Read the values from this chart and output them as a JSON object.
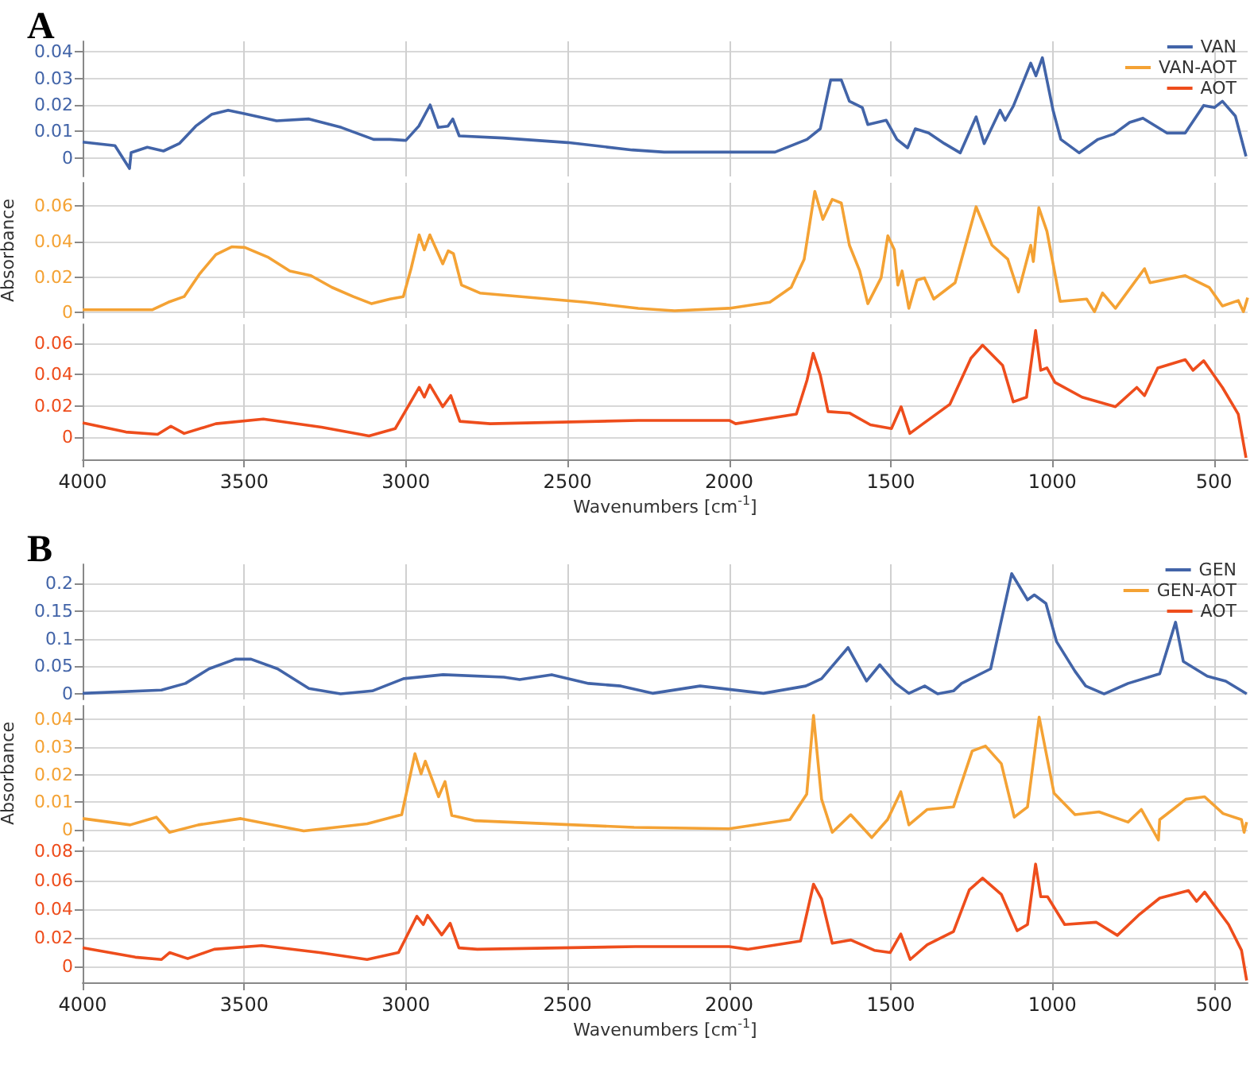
{
  "chart_data": [
    {
      "type": "line",
      "title": "A",
      "xlim": [
        4000,
        396
      ],
      "xticks": [
        4000,
        3500,
        3000,
        2500,
        2000,
        1500,
        1000,
        500
      ],
      "ylim": [
        -0.007,
        0.044
      ],
      "yticks": [
        0,
        0.01,
        0.02,
        0.03,
        0.04
      ],
      "tick_labels": "y",
      "grid": true,
      "legend": "top right",
      "marker": "none",
      "series": [
        {
          "name": "VAN",
          "color": "#4264a8",
          "x": [
            4000,
            3900,
            3855,
            3850,
            3800,
            3750,
            3700,
            3650,
            3600,
            3550,
            3500,
            3400,
            3300,
            3200,
            3100,
            3050,
            3000,
            2960,
            2925,
            2900,
            2870,
            2855,
            2835,
            2700,
            2500,
            2300,
            2201,
            2000,
            1858,
            1759,
            1718,
            1686,
            1653,
            1628,
            1588,
            1571,
            1514,
            1481,
            1448,
            1424,
            1383,
            1334,
            1285,
            1236,
            1211,
            1162,
            1146,
            1121,
            1088,
            1067,
            1051,
            1031,
            998,
            974,
            917,
            859,
            810,
            761,
            720,
            646,
            589,
            532,
            499,
            474,
            434,
            401
          ],
          "values": [
            0.006,
            0.0046,
            -0.004,
            0.002,
            0.004,
            0.0026,
            0.0055,
            0.012,
            0.0165,
            0.018,
            0.0167,
            0.014,
            0.0147,
            0.0115,
            0.007,
            0.007,
            0.0066,
            0.012,
            0.02,
            0.0115,
            0.012,
            0.0147,
            0.0083,
            0.0075,
            0.0058,
            0.003,
            0.0022,
            0.0022,
            0.0022,
            0.007,
            0.011,
            0.0294,
            0.0294,
            0.0214,
            0.019,
            0.0126,
            0.0142,
            0.007,
            0.0038,
            0.011,
            0.0094,
            0.0054,
            0.0019,
            0.0155,
            0.0054,
            0.018,
            0.0142,
            0.0195,
            0.0294,
            0.0358,
            0.031,
            0.0378,
            0.018,
            0.007,
            0.0019,
            0.007,
            0.009,
            0.0134,
            0.015,
            0.0094,
            0.0094,
            0.0198,
            0.019,
            0.0214,
            0.0158,
            0.0006
          ]
        }
      ]
    },
    {
      "type": "line",
      "ylabel": "Absorbance",
      "xlim": [
        4000,
        396
      ],
      "xticks": [
        4000,
        3500,
        3000,
        2500,
        2000,
        1500,
        1000,
        500
      ],
      "ylim": [
        -0.003,
        0.073
      ],
      "yticks": [
        0,
        0.02,
        0.04,
        0.06
      ],
      "tick_labels": "y",
      "grid": true,
      "legend": "top right",
      "marker": "none",
      "series": [
        {
          "name": "VAN-AOT",
          "color": "#f4a234",
          "x": [
            4000,
            3784,
            3735,
            3686,
            3637,
            3588,
            3539,
            3498,
            3425,
            3359,
            3294,
            3229,
            3163,
            3106,
            3049,
            3008,
            2984,
            2959,
            2943,
            2926,
            2886,
            2869,
            2853,
            2828,
            2771,
            2608,
            2444,
            2281,
            2169,
            2000,
            1874,
            1808,
            1768,
            1735,
            1710,
            1681,
            1653,
            1628,
            1596,
            1571,
            1530,
            1509,
            1489,
            1478,
            1465,
            1444,
            1419,
            1396,
            1367,
            1301,
            1236,
            1187,
            1138,
            1105,
            1067,
            1059,
            1042,
            1017,
            976,
            894,
            870,
            845,
            805,
            715,
            698,
            589,
            515,
            474,
            425,
            409,
            396
          ],
          "values": [
            0.0016,
            0.0016,
            0.0058,
            0.009,
            0.022,
            0.0326,
            0.037,
            0.0366,
            0.031,
            0.0234,
            0.0208,
            0.0142,
            0.009,
            0.005,
            0.0076,
            0.009,
            0.0247,
            0.0437,
            0.0353,
            0.0437,
            0.0274,
            0.0347,
            0.0332,
            0.0155,
            0.011,
            0.0084,
            0.0058,
            0.0024,
            0.001,
            0.0024,
            0.0058,
            0.0142,
            0.03,
            0.0682,
            0.0524,
            0.0637,
            0.0616,
            0.0379,
            0.0234,
            0.005,
            0.0195,
            0.0432,
            0.0353,
            0.0155,
            0.0234,
            0.0024,
            0.0182,
            0.0195,
            0.0076,
            0.0168,
            0.0595,
            0.0379,
            0.03,
            0.0116,
            0.0379,
            0.0287,
            0.059,
            0.0458,
            0.0063,
            0.0076,
            0.0005,
            0.011,
            0.0024,
            0.0247,
            0.0168,
            0.0208,
            0.0142,
            0.0037,
            0.0068,
            0.0005,
            0.0084
          ]
        }
      ]
    },
    {
      "type": "line",
      "xlabel": "Wavenumbers [cm$^{-1}$]",
      "xlim": [
        4000,
        396
      ],
      "xticks": [
        4000,
        3500,
        3000,
        2500,
        2000,
        1500,
        1000,
        500
      ],
      "ylim": [
        -0.014,
        0.072
      ],
      "yticks": [
        0,
        0.02,
        0.04,
        0.06
      ],
      "grid": true,
      "legend": "top right",
      "marker": "none",
      "series": [
        {
          "name": "AOT",
          "color": "#ee4d1c",
          "x": [
            4000,
            3866,
            3768,
            3727,
            3686,
            3588,
            3441,
            3261,
            3114,
            3033,
            2959,
            2943,
            2926,
            2886,
            2861,
            2833,
            2739,
            2281,
            2000,
            1980,
            1792,
            1759,
            1740,
            1718,
            1694,
            1628,
            1563,
            1498,
            1468,
            1441,
            1400,
            1317,
            1252,
            1216,
            1154,
            1121,
            1080,
            1052,
            1036,
            1017,
            992,
            908,
            805,
            739,
            715,
            674,
            589,
            565,
            532,
            474,
            425,
            401
          ],
          "values": [
            0.0093,
            0.0034,
            0.0019,
            0.0071,
            0.0025,
            0.0087,
            0.0117,
            0.0065,
            0.0009,
            0.0056,
            0.0318,
            0.0256,
            0.0334,
            0.0195,
            0.0266,
            0.0102,
            0.0087,
            0.0108,
            0.0108,
            0.0087,
            0.0148,
            0.0365,
            0.0535,
            0.0396,
            0.0164,
            0.0155,
            0.008,
            0.0056,
            0.0195,
            0.0025,
            0.0087,
            0.0211,
            0.0504,
            0.0587,
            0.0458,
            0.0226,
            0.0256,
            0.068,
            0.0427,
            0.0442,
            0.035,
            0.0256,
            0.0195,
            0.0318,
            0.0266,
            0.0442,
            0.0495,
            0.0427,
            0.0488,
            0.0318,
            0.0148,
            -0.013
          ]
        }
      ]
    },
    {
      "type": "line",
      "title": "B",
      "xlim": [
        4000,
        396
      ],
      "xticks": [
        4000,
        3500,
        3000,
        2500,
        2000,
        1500,
        1000,
        500
      ],
      "ylim": [
        -0.01,
        0.235
      ],
      "yticks": [
        0,
        0.05,
        0.1,
        0.15,
        0.2
      ],
      "tick_labels": "y",
      "grid": true,
      "legend": "top right",
      "marker": "none",
      "series": [
        {
          "name": "GEN",
          "color": "#4264a8",
          "x": [
            4000,
            3756,
            3682,
            3609,
            3528,
            3479,
            3397,
            3300,
            3202,
            3104,
            3007,
            2885,
            2697,
            2648,
            2549,
            2435,
            2335,
            2237,
            2090,
            1894,
            1763,
            1714,
            1632,
            1575,
            1534,
            1485,
            1444,
            1395,
            1355,
            1306,
            1281,
            1191,
            1126,
            1077,
            1056,
            1020,
            987,
            930,
            897,
            840,
            766,
            668,
            619,
            595,
            521,
            464,
            399
          ],
          "values": [
            0.001,
            0.007,
            0.019,
            0.0455,
            0.063,
            0.063,
            0.0455,
            0.0098,
            0,
            0.0054,
            0.0277,
            0.0348,
            0.0304,
            0.0259,
            0.0348,
            0.019,
            0.0143,
            0.001,
            0.0143,
            0.001,
            0.0143,
            0.0277,
            0.084,
            0.0232,
            0.0527,
            0.019,
            0.001,
            0.0143,
            0,
            0.0054,
            0.019,
            0.0455,
            0.218,
            0.1705,
            0.1795,
            0.164,
            0.0946,
            0.041,
            0.0143,
            0,
            0.019,
            0.0366,
            0.13,
            0.0589,
            0.0321,
            0.0232,
            0
          ]
        }
      ]
    },
    {
      "type": "line",
      "ylabel": "Absorbance",
      "xlim": [
        4000,
        396
      ],
      "xticks": [
        4000,
        3500,
        3000,
        2500,
        2000,
        1500,
        1000,
        500
      ],
      "ylim": [
        -0.004,
        0.045
      ],
      "yticks": [
        0,
        0.01,
        0.02,
        0.03,
        0.04
      ],
      "tick_labels": "y",
      "grid": true,
      "legend": "top right",
      "marker": "none",
      "series": [
        {
          "name": "GEN-AOT",
          "color": "#f4a234",
          "x": [
            4000,
            3853,
            3772,
            3731,
            3642,
            3511,
            3316,
            3120,
            3013,
            2972,
            2953,
            2940,
            2899,
            2879,
            2858,
            2785,
            2294,
            2000,
            1812,
            1760,
            1739,
            1714,
            1681,
            1624,
            1559,
            1510,
            1469,
            1444,
            1387,
            1306,
            1248,
            1207,
            1158,
            1118,
            1077,
            1041,
            995,
            930,
            856,
            766,
            725,
            672,
            668,
            587,
            529,
            472,
            415,
            407,
            399
          ],
          "values": [
            0.0041,
            0.0018,
            0.0046,
            -0.0009,
            0.0018,
            0.0041,
            -0.0004,
            0.0022,
            0.0055,
            0.0276,
            0.0203,
            0.0249,
            0.012,
            0.0175,
            0.0052,
            0.0033,
            0.0009,
            0.0004,
            0.0037,
            0.0129,
            0.0415,
            0.0111,
            -0.0009,
            0.0055,
            -0.0028,
            0.0037,
            0.0138,
            0.0018,
            0.0074,
            0.0083,
            0.0286,
            0.0304,
            0.024,
            0.0046,
            0.0083,
            0.0409,
            0.0133,
            0.0055,
            0.0065,
            0.0028,
            0.0074,
            -0.0037,
            0.0037,
            0.0111,
            0.012,
            0.0059,
            0.0037,
            -0.0009,
            0.0028
          ]
        }
      ]
    },
    {
      "type": "line",
      "xlabel": "Wavenumbers [cm$^{-1}$]",
      "xlim": [
        4000,
        396
      ],
      "xticks": [
        4000,
        3500,
        3000,
        2500,
        2000,
        1500,
        1000,
        500
      ],
      "ylim": [
        -0.011,
        0.083
      ],
      "yticks": [
        0,
        0.02,
        0.04,
        0.06,
        0.08
      ],
      "grid": true,
      "legend": "top right",
      "marker": "none",
      "series": [
        {
          "name": "AOT",
          "color": "#ee4d1c",
          "x": [
            4000,
            3837,
            3756,
            3731,
            3675,
            3593,
            3446,
            3267,
            3120,
            3023,
            2966,
            2946,
            2933,
            2889,
            2863,
            2836,
            2779,
            2290,
            2000,
            1943,
            1779,
            1739,
            1714,
            1681,
            1624,
            1551,
            1502,
            1469,
            1440,
            1387,
            1306,
            1257,
            1216,
            1158,
            1109,
            1077,
            1052,
            1036,
            1015,
            962,
            864,
            799,
            734,
            668,
            579,
            554,
            529,
            455,
            415,
            399
          ],
          "values": [
            0.013,
            0.0065,
            0.0049,
            0.0097,
            0.0055,
            0.012,
            0.0146,
            0.0097,
            0.0049,
            0.0097,
            0.035,
            0.0292,
            0.0356,
            0.022,
            0.0301,
            0.013,
            0.012,
            0.0139,
            0.0139,
            0.012,
            0.0178,
            0.0573,
            0.047,
            0.0162,
            0.0185,
            0.0113,
            0.0097,
            0.0227,
            0.0049,
            0.0152,
            0.0243,
            0.0534,
            0.0615,
            0.0502,
            0.0249,
            0.0292,
            0.0713,
            0.0486,
            0.0486,
            0.0292,
            0.0308,
            0.0217,
            0.0356,
            0.0476,
            0.0528,
            0.0453,
            0.0518,
            0.0292,
            0.0113,
            -0.0097
          ]
        }
      ]
    }
  ]
}
